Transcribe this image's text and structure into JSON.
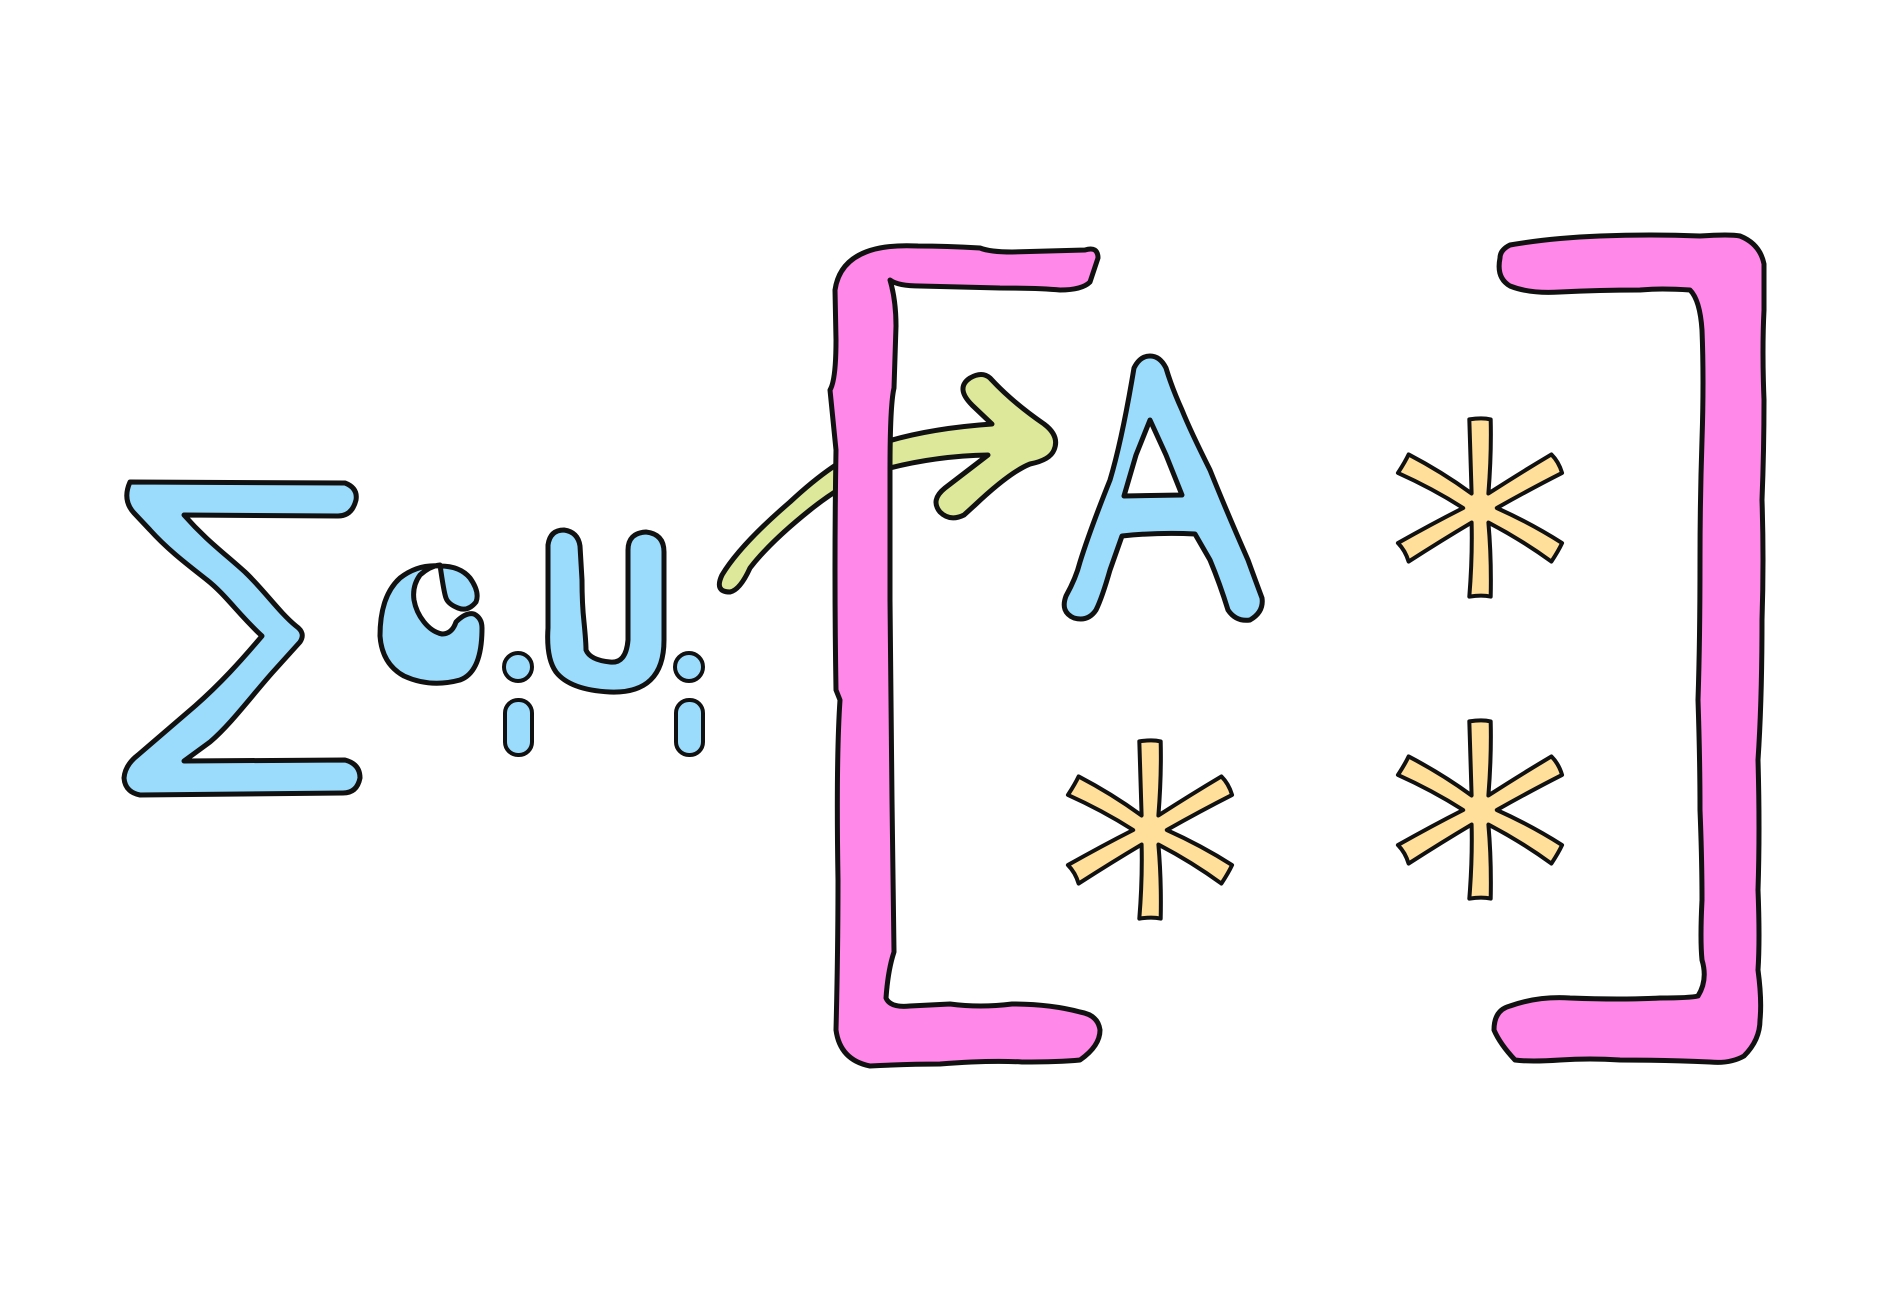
{
  "expression": {
    "sum_symbol": "Σ",
    "term_1": {
      "base": "c",
      "subscript": "i"
    },
    "term_2": {
      "base": "U",
      "subscript": "i"
    },
    "matrix": {
      "entries": [
        "A",
        "*",
        "*",
        "*"
      ],
      "rows": 2,
      "cols": 2
    }
  },
  "colors": {
    "symbol_fill": "#9BDCFD",
    "bracket_fill": "#FF88E8",
    "star_fill": "#FFDF99",
    "arrow_fill": "#DDE89B",
    "outline": "#111111",
    "background": "#FFFFFF"
  },
  "icons": {
    "sum": "sigma-glyph",
    "arrow": "curved-arrow-icon",
    "stars": "asterisk-icon"
  }
}
